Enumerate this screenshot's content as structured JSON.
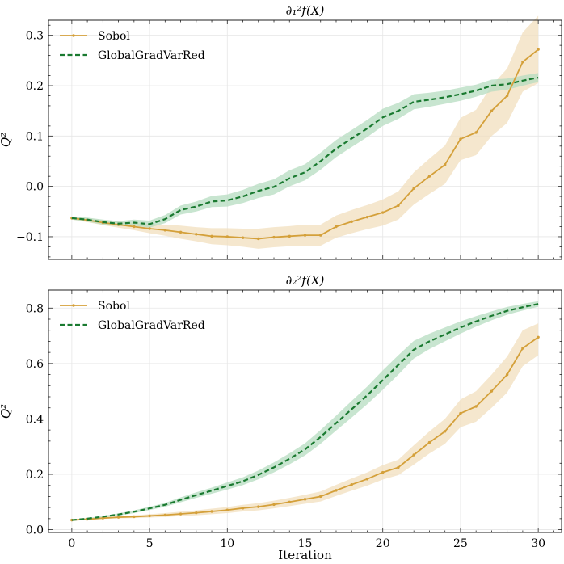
{
  "colors": {
    "sobol": "#d4a03a",
    "sobol_band": "#f1dfbd",
    "ggvr": "#1a7a30",
    "ggvr_band": "#b5dcc0",
    "grid": "#e6e6e6",
    "axis": "#222222"
  },
  "chart_data": [
    {
      "type": "line",
      "title": "∂₁²f(X)",
      "xlabel": "",
      "ylabel": "Q²",
      "xlim": [
        -1.5,
        31.5
      ],
      "ylim": [
        -0.145,
        0.33
      ],
      "xticks": [
        0,
        5,
        10,
        15,
        20,
        25,
        30
      ],
      "yticks": [
        -0.1,
        0.0,
        0.1,
        0.2,
        0.3
      ],
      "ytick_labels": [
        "−0.1",
        "0.0",
        "0.1",
        "0.2",
        "0.3"
      ],
      "show_xtick_labels": false,
      "grid": true,
      "legend_position": "top-left",
      "x": [
        0,
        1,
        2,
        3,
        4,
        5,
        6,
        7,
        8,
        9,
        10,
        11,
        12,
        13,
        14,
        15,
        16,
        17,
        18,
        19,
        20,
        21,
        22,
        23,
        24,
        25,
        26,
        27,
        28,
        29,
        30
      ],
      "series": [
        {
          "name": "Sobol",
          "style": "solid-dot",
          "values": [
            -0.063,
            -0.067,
            -0.072,
            -0.076,
            -0.08,
            -0.084,
            -0.087,
            -0.091,
            -0.095,
            -0.099,
            -0.1,
            -0.102,
            -0.104,
            -0.101,
            -0.099,
            -0.097,
            -0.097,
            -0.08,
            -0.07,
            -0.061,
            -0.052,
            -0.038,
            -0.004,
            0.02,
            0.043,
            0.094,
            0.107,
            0.15,
            0.18,
            0.247,
            0.272
          ],
          "lower": [
            -0.066,
            -0.071,
            -0.077,
            -0.082,
            -0.087,
            -0.093,
            -0.098,
            -0.104,
            -0.109,
            -0.115,
            -0.117,
            -0.12,
            -0.124,
            -0.121,
            -0.119,
            -0.118,
            -0.118,
            -0.102,
            -0.093,
            -0.085,
            -0.078,
            -0.066,
            -0.036,
            -0.015,
            0.005,
            0.052,
            0.062,
            0.1,
            0.126,
            0.188,
            0.205
          ],
          "upper": [
            -0.06,
            -0.063,
            -0.067,
            -0.07,
            -0.073,
            -0.075,
            -0.076,
            -0.078,
            -0.081,
            -0.083,
            -0.083,
            -0.084,
            -0.084,
            -0.081,
            -0.079,
            -0.076,
            -0.076,
            -0.058,
            -0.047,
            -0.037,
            -0.026,
            -0.01,
            0.028,
            0.055,
            0.081,
            0.136,
            0.152,
            0.2,
            0.234,
            0.306,
            0.339
          ]
        },
        {
          "name": "GlobalGradVarRed",
          "style": "dashed",
          "values": [
            -0.063,
            -0.066,
            -0.071,
            -0.074,
            -0.072,
            -0.075,
            -0.065,
            -0.047,
            -0.04,
            -0.03,
            -0.028,
            -0.02,
            -0.009,
            -0.001,
            0.016,
            0.028,
            0.05,
            0.075,
            0.095,
            0.115,
            0.137,
            0.15,
            0.168,
            0.172,
            0.177,
            0.183,
            0.19,
            0.2,
            0.203,
            0.21,
            0.216
          ],
          "lower": [
            -0.066,
            -0.07,
            -0.076,
            -0.079,
            -0.078,
            -0.082,
            -0.073,
            -0.056,
            -0.05,
            -0.041,
            -0.04,
            -0.033,
            -0.023,
            -0.016,
            0.0,
            0.012,
            0.033,
            0.058,
            0.078,
            0.098,
            0.12,
            0.134,
            0.153,
            0.158,
            0.164,
            0.17,
            0.178,
            0.188,
            0.192,
            0.2,
            0.207
          ],
          "upper": [
            -0.06,
            -0.062,
            -0.066,
            -0.069,
            -0.066,
            -0.068,
            -0.057,
            -0.038,
            -0.03,
            -0.019,
            -0.016,
            -0.007,
            0.005,
            0.014,
            0.032,
            0.044,
            0.067,
            0.092,
            0.112,
            0.132,
            0.154,
            0.166,
            0.183,
            0.186,
            0.19,
            0.196,
            0.202,
            0.212,
            0.214,
            0.22,
            0.225
          ]
        }
      ]
    },
    {
      "type": "line",
      "title": "∂₂²f(X)",
      "xlabel": "Iteration",
      "ylabel": "Q²",
      "xlim": [
        -1.5,
        31.5
      ],
      "ylim": [
        -0.01,
        0.865
      ],
      "xticks": [
        0,
        5,
        10,
        15,
        20,
        25,
        30
      ],
      "yticks": [
        0.0,
        0.2,
        0.4,
        0.6,
        0.8
      ],
      "ytick_labels": [
        "0.0",
        "0.2",
        "0.4",
        "0.6",
        "0.8"
      ],
      "show_xtick_labels": true,
      "grid": true,
      "legend_position": "top-left",
      "x": [
        0,
        1,
        2,
        3,
        4,
        5,
        6,
        7,
        8,
        9,
        10,
        11,
        12,
        13,
        14,
        15,
        16,
        17,
        18,
        19,
        20,
        21,
        22,
        23,
        24,
        25,
        26,
        27,
        28,
        29,
        30
      ],
      "series": [
        {
          "name": "Sobol",
          "style": "solid-dot",
          "values": [
            0.035,
            0.038,
            0.042,
            0.045,
            0.047,
            0.05,
            0.053,
            0.057,
            0.061,
            0.066,
            0.071,
            0.078,
            0.083,
            0.091,
            0.1,
            0.11,
            0.12,
            0.142,
            0.163,
            0.183,
            0.207,
            0.225,
            0.27,
            0.315,
            0.355,
            0.42,
            0.445,
            0.5,
            0.56,
            0.655,
            0.695
          ],
          "lower": [
            0.034,
            0.036,
            0.039,
            0.041,
            0.042,
            0.044,
            0.046,
            0.049,
            0.052,
            0.056,
            0.06,
            0.066,
            0.07,
            0.077,
            0.085,
            0.094,
            0.102,
            0.122,
            0.141,
            0.159,
            0.181,
            0.197,
            0.235,
            0.275,
            0.31,
            0.37,
            0.39,
            0.44,
            0.495,
            0.59,
            0.63
          ],
          "upper": [
            0.036,
            0.04,
            0.045,
            0.049,
            0.052,
            0.056,
            0.06,
            0.065,
            0.07,
            0.076,
            0.082,
            0.09,
            0.096,
            0.105,
            0.115,
            0.126,
            0.138,
            0.162,
            0.185,
            0.207,
            0.233,
            0.253,
            0.305,
            0.355,
            0.4,
            0.47,
            0.5,
            0.56,
            0.625,
            0.72,
            0.745
          ]
        },
        {
          "name": "GlobalGradVarRed",
          "style": "dashed",
          "values": [
            0.035,
            0.04,
            0.047,
            0.055,
            0.065,
            0.077,
            0.09,
            0.108,
            0.125,
            0.141,
            0.158,
            0.175,
            0.198,
            0.225,
            0.256,
            0.29,
            0.335,
            0.385,
            0.435,
            0.485,
            0.54,
            0.595,
            0.65,
            0.68,
            0.705,
            0.73,
            0.752,
            0.772,
            0.79,
            0.803,
            0.815
          ],
          "lower": [
            0.034,
            0.038,
            0.044,
            0.051,
            0.06,
            0.071,
            0.083,
            0.099,
            0.115,
            0.13,
            0.145,
            0.161,
            0.182,
            0.207,
            0.236,
            0.268,
            0.31,
            0.358,
            0.405,
            0.453,
            0.505,
            0.56,
            0.618,
            0.652,
            0.68,
            0.708,
            0.733,
            0.756,
            0.776,
            0.791,
            0.805
          ],
          "upper": [
            0.036,
            0.042,
            0.05,
            0.059,
            0.07,
            0.083,
            0.097,
            0.117,
            0.135,
            0.152,
            0.171,
            0.189,
            0.214,
            0.243,
            0.276,
            0.312,
            0.36,
            0.412,
            0.465,
            0.517,
            0.575,
            0.63,
            0.682,
            0.708,
            0.73,
            0.752,
            0.771,
            0.788,
            0.804,
            0.815,
            0.825
          ]
        }
      ]
    }
  ]
}
